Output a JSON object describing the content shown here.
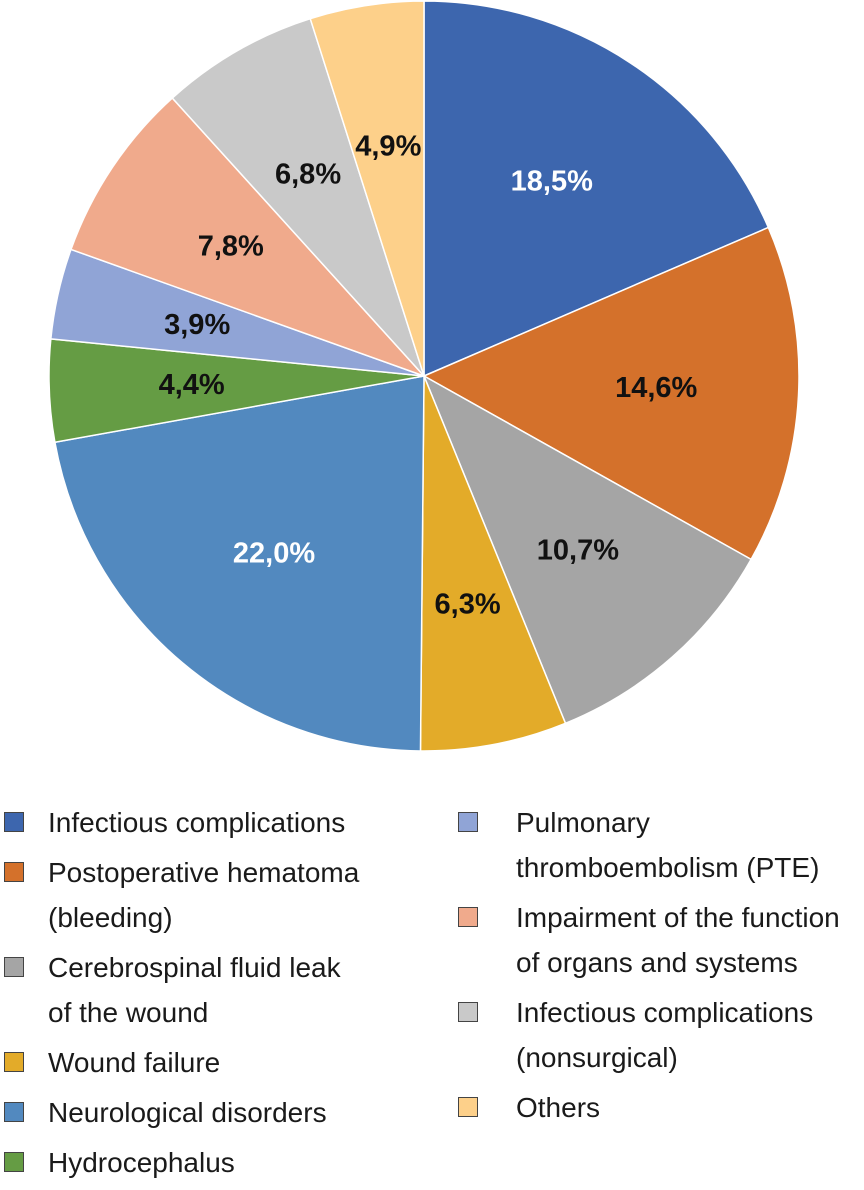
{
  "chart_data": {
    "type": "pie",
    "title": "",
    "start": "top, clockwise",
    "slices": [
      {
        "name": "Infectious complications",
        "value": 18.5,
        "label": "18,5%",
        "color": "#3d66ae",
        "label_color": "#ffffff"
      },
      {
        "name": "Postoperative hematoma (bleeding)",
        "value": 14.6,
        "label": "14,6%",
        "color": "#d4712b",
        "label_color": "#111111"
      },
      {
        "name": "Cerebrospinal fluid leak of the wound",
        "value": 10.7,
        "label": "10,7%",
        "color": "#a5a5a5",
        "label_color": "#111111"
      },
      {
        "name": "Wound failure",
        "value": 6.3,
        "label": "6,3%",
        "color": "#e3ab29",
        "label_color": "#111111"
      },
      {
        "name": "Neurological disorders",
        "value": 22.0,
        "label": "22,0%",
        "color": "#5289bf",
        "label_color": "#ffffff"
      },
      {
        "name": "Hydrocephalus",
        "value": 4.4,
        "label": "4,4%",
        "color": "#659c44",
        "label_color": "#111111"
      },
      {
        "name": "Pulmonary thromboembolism (PTE)",
        "value": 3.9,
        "label": "3,9%",
        "color": "#90a4d6",
        "label_color": "#111111"
      },
      {
        "name": "Impairment of the function of organs and systems",
        "value": 7.8,
        "label": "7,8%",
        "color": "#f0aa8c",
        "label_color": "#111111"
      },
      {
        "name": "Infectious complications (nonsurgical)",
        "value": 6.8,
        "label": "6,8%",
        "color": "#c9c9c9",
        "label_color": "#111111"
      },
      {
        "name": "Others",
        "value": 4.9,
        "label": "4,9%",
        "color": "#fdd08a",
        "label_color": "#111111"
      }
    ]
  },
  "legend": {
    "left": [
      {
        "lines": [
          "Infectious complications"
        ],
        "color": "#3d66ae"
      },
      {
        "lines": [
          "Postoperative hematoma",
          "(bleeding)"
        ],
        "color": "#d4712b"
      },
      {
        "lines": [
          "Cerebrospinal fluid leak",
          "of the wound"
        ],
        "color": "#a5a5a5"
      },
      {
        "lines": [
          "Wound failure"
        ],
        "color": "#e3ab29"
      },
      {
        "lines": [
          "Neurological disorders"
        ],
        "color": "#5289bf"
      },
      {
        "lines": [
          "Hydrocephalus"
        ],
        "color": "#659c44"
      }
    ],
    "right": [
      {
        "lines": [
          "Pulmonary",
          "thromboembolism (PTE)"
        ],
        "color": "#90a4d6"
      },
      {
        "lines": [
          "Impairment of the function",
          "of organs and systems"
        ],
        "color": "#f0aa8c"
      },
      {
        "lines": [
          "Infectious complications",
          "(nonsurgical)"
        ],
        "color": "#c9c9c9"
      },
      {
        "lines": [
          "Others"
        ],
        "color": "#fdd08a"
      }
    ]
  }
}
